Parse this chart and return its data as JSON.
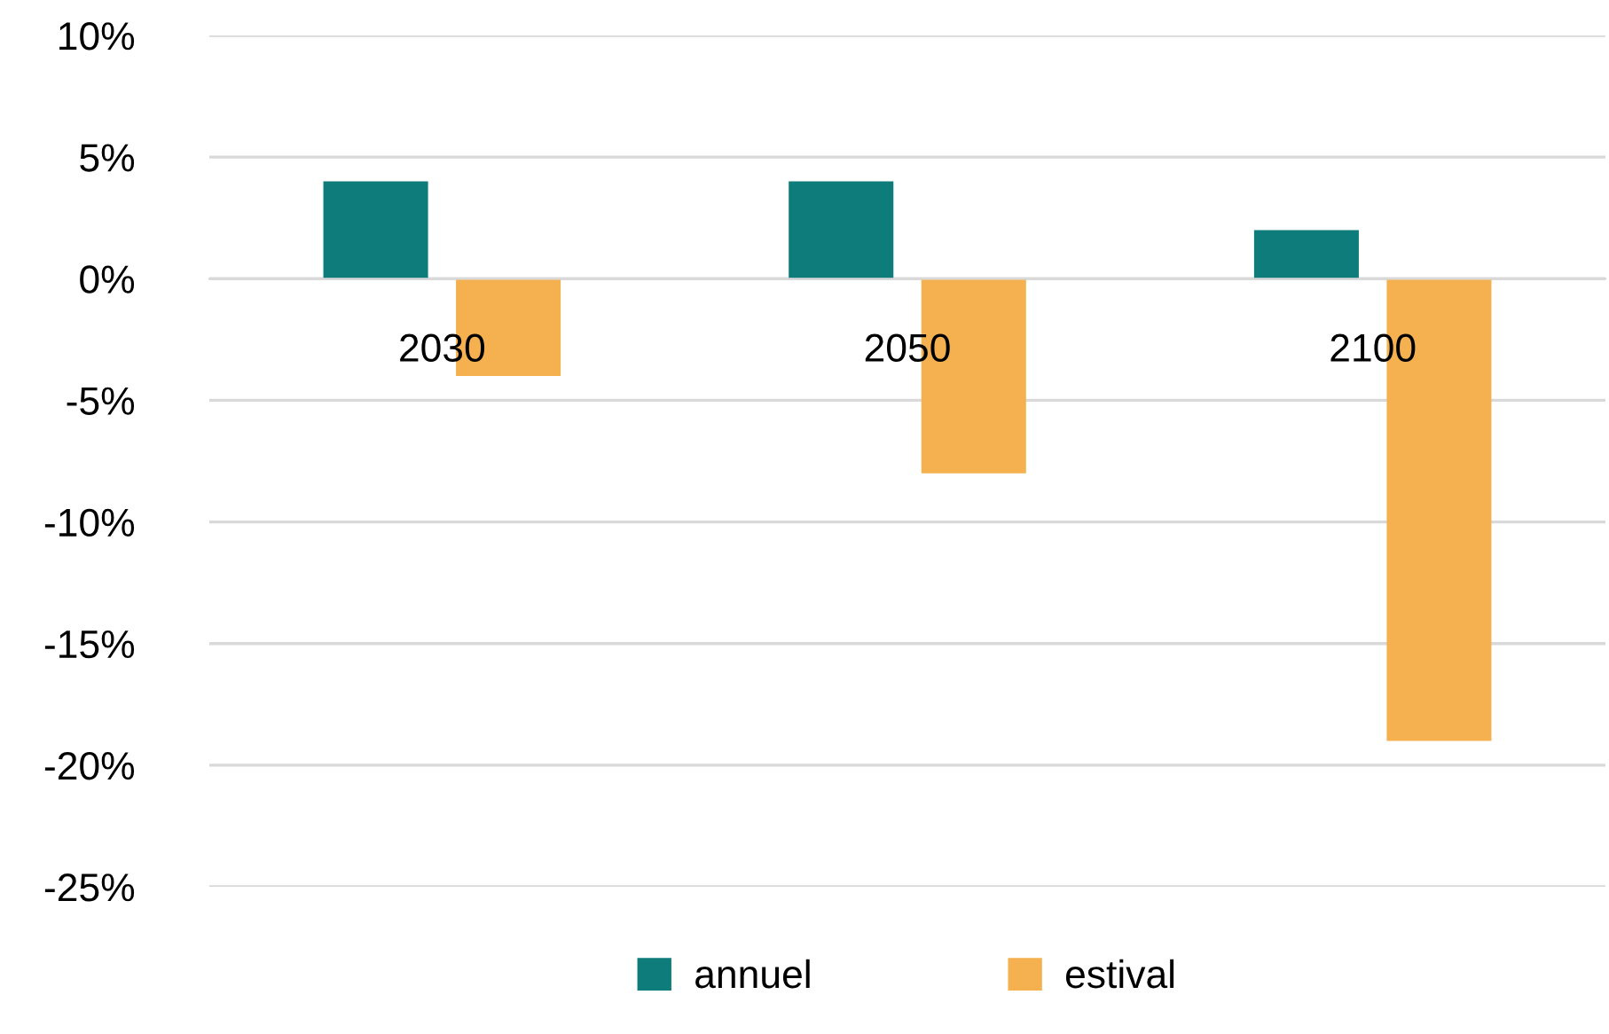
{
  "chart_data": {
    "type": "bar",
    "categories": [
      "2030",
      "2050",
      "2100"
    ],
    "series": [
      {
        "name": "annuel",
        "color": "#0e7c7b",
        "values": [
          4,
          4,
          2
        ]
      },
      {
        "name": "estival",
        "color": "#f5b04f",
        "values": [
          -4,
          -8,
          -19
        ]
      }
    ],
    "ylim": [
      -25,
      10
    ],
    "yticks": [
      {
        "value": -25,
        "label": "-25%"
      },
      {
        "value": -20,
        "label": "-20%"
      },
      {
        "value": -15,
        "label": "-15%"
      },
      {
        "value": -10,
        "label": "-10%"
      },
      {
        "value": -5,
        "label": "-5%"
      },
      {
        "value": 0,
        "label": "0%"
      },
      {
        "value": 5,
        "label": "5%"
      },
      {
        "value": 10,
        "label": "10%"
      }
    ],
    "grid": "y",
    "legend": "bottom"
  }
}
